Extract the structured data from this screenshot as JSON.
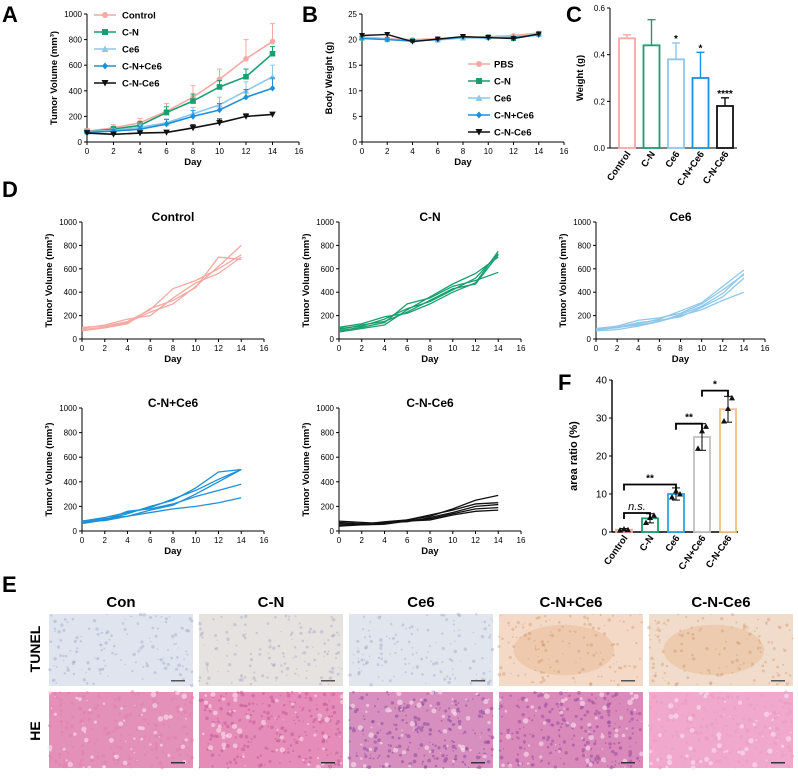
{
  "figure": {
    "panel_labels": [
      "A",
      "B",
      "C",
      "D",
      "E",
      "F"
    ],
    "colors": {
      "control": "#f4a9a3",
      "cn": "#1a9e6e",
      "ce6": "#8ec7ea",
      "cnce6": "#1e90d8",
      "cnce6b": "#111111",
      "f_cn": "#1a9e6e",
      "f_ce6": "#2ea3e6",
      "f_cnce6": "#c0c0c0",
      "f_cnce6b": "#f1c27d"
    }
  },
  "chart_data": [
    {
      "id": "A",
      "type": "line",
      "title": "",
      "xlabel": "Day",
      "ylabel": "Tumor Volume (mm³)",
      "xlim": [
        0,
        16
      ],
      "ylim": [
        0,
        1000
      ],
      "xticks": [
        0,
        2,
        4,
        6,
        8,
        10,
        12,
        14,
        16
      ],
      "yticks": [
        0,
        200,
        400,
        600,
        800,
        1000
      ],
      "x": [
        0,
        2,
        4,
        6,
        8,
        10,
        12,
        14
      ],
      "series": [
        {
          "name": "Control",
          "color": "control",
          "marker": "circle",
          "values": [
            85,
            110,
            150,
            240,
            350,
            490,
            650,
            785
          ],
          "err": [
            20,
            25,
            35,
            60,
            90,
            80,
            150,
            140
          ]
        },
        {
          "name": "C-N",
          "color": "cn",
          "marker": "square",
          "values": [
            80,
            100,
            130,
            230,
            320,
            430,
            510,
            690
          ],
          "err": [
            15,
            20,
            30,
            45,
            55,
            50,
            60,
            55
          ]
        },
        {
          "name": "Ce6",
          "color": "ce6",
          "marker": "triangle",
          "values": [
            80,
            90,
            115,
            150,
            220,
            290,
            400,
            510
          ],
          "err": [
            15,
            15,
            25,
            30,
            50,
            60,
            70,
            90
          ]
        },
        {
          "name": "C-N+Ce6",
          "color": "cnce6",
          "marker": "diamond",
          "values": [
            75,
            85,
            100,
            140,
            200,
            250,
            350,
            420
          ],
          "err": [
            15,
            15,
            20,
            35,
            45,
            50,
            60,
            80
          ]
        },
        {
          "name": "C-N-Ce6",
          "color": "cnce6b",
          "marker": "tridown",
          "values": [
            70,
            60,
            70,
            75,
            110,
            150,
            200,
            215
          ],
          "err": [
            10,
            10,
            10,
            10,
            25,
            30,
            20,
            15
          ]
        }
      ]
    },
    {
      "id": "B",
      "type": "line",
      "title": "",
      "xlabel": "Day",
      "ylabel": "Body Weight (g)",
      "xlim": [
        0,
        16
      ],
      "ylim": [
        0,
        25
      ],
      "xticks": [
        0,
        2,
        4,
        6,
        8,
        10,
        12,
        14,
        16
      ],
      "yticks": [
        0,
        5,
        10,
        15,
        20,
        25
      ],
      "x": [
        0,
        2,
        4,
        6,
        8,
        10,
        12,
        14
      ],
      "series": [
        {
          "name": "PBS",
          "color": "control",
          "marker": "circle",
          "values": [
            20.5,
            20.2,
            20.0,
            20.2,
            20.4,
            20.6,
            20.8,
            21.3
          ]
        },
        {
          "name": "C-N",
          "color": "cn",
          "marker": "square",
          "values": [
            20.3,
            20.0,
            19.8,
            20.0,
            20.4,
            20.5,
            20.2,
            21.0
          ]
        },
        {
          "name": "Ce6",
          "color": "ce6",
          "marker": "triangle",
          "values": [
            20.4,
            20.1,
            19.9,
            19.9,
            20.3,
            20.4,
            20.6,
            21.0
          ]
        },
        {
          "name": "C-N+Ce6",
          "color": "cnce6",
          "marker": "diamond",
          "values": [
            20.2,
            20.0,
            19.7,
            20.0,
            20.5,
            20.3,
            20.4,
            20.9
          ]
        },
        {
          "name": "C-N-Ce6",
          "color": "cnce6b",
          "marker": "tridown",
          "values": [
            20.8,
            21.0,
            19.6,
            20.1,
            20.6,
            20.4,
            20.2,
            21.1
          ]
        }
      ]
    },
    {
      "id": "C",
      "type": "bar",
      "title": "",
      "xlabel": "",
      "ylabel": "Weight (g)",
      "ylim": [
        0,
        0.6
      ],
      "yticks": [
        "0.0",
        "0.2",
        "0.4",
        "0.6"
      ],
      "categories": [
        "Control",
        "C-N",
        "Ce6",
        "C-N+Ce6",
        "C-N-Ce6"
      ],
      "colors": [
        "control",
        "cn",
        "ce6",
        "cnce6",
        "cnce6b"
      ],
      "values": [
        0.47,
        0.44,
        0.38,
        0.3,
        0.18
      ],
      "err": [
        0.015,
        0.11,
        0.07,
        0.11,
        0.035
      ],
      "significance": [
        "",
        "",
        "*",
        "*",
        "****"
      ]
    },
    {
      "id": "D",
      "type": "line",
      "subplots": [
        {
          "title": "Control",
          "color": "control",
          "xlabel": "Day",
          "ylabel": "Tumor Volume (mm³)",
          "xlim": [
            0,
            16
          ],
          "ylim": [
            0,
            1000
          ],
          "x": [
            0,
            2,
            4,
            6,
            8,
            10,
            12,
            14
          ],
          "lines": [
            [
              100,
              110,
              150,
              250,
              430,
              500,
              600,
              720
            ],
            [
              80,
              100,
              140,
              230,
              300,
              450,
              620,
              800
            ],
            [
              90,
              120,
              170,
              200,
              350,
              480,
              560,
              700
            ],
            [
              70,
              95,
              130,
              260,
              330,
              440,
              700,
              680
            ]
          ]
        },
        {
          "title": "C-N",
          "color": "cn",
          "xlabel": "Day",
          "ylabel": "Tumor Volume (mm³)",
          "xlim": [
            0,
            16
          ],
          "ylim": [
            0,
            1000
          ],
          "x": [
            0,
            2,
            4,
            6,
            8,
            10,
            12,
            14
          ],
          "lines": [
            [
              70,
              100,
              140,
              300,
              350,
              450,
              500,
              570
            ],
            [
              90,
              110,
              170,
              260,
              320,
              420,
              520,
              730
            ],
            [
              100,
              130,
              190,
              220,
              300,
              400,
              480,
              750
            ],
            [
              60,
              90,
              120,
              250,
              360,
              470,
              560,
              700
            ],
            [
              80,
              120,
              150,
              230,
              330,
              430,
              470,
              720
            ]
          ]
        },
        {
          "title": "Ce6",
          "color": "ce6",
          "xlabel": "Day",
          "ylabel": "Tumor Volume (mm³)",
          "xlim": [
            0,
            16
          ],
          "ylim": [
            0,
            1000
          ],
          "x": [
            0,
            2,
            4,
            6,
            8,
            10,
            12,
            14
          ],
          "lines": [
            [
              80,
              100,
              120,
              150,
              200,
              250,
              330,
              400
            ],
            [
              90,
              110,
              160,
              180,
              220,
              300,
              420,
              550
            ],
            [
              70,
              80,
              110,
              150,
              210,
              280,
              390,
              560
            ],
            [
              85,
              95,
              130,
              170,
              240,
              310,
              450,
              590
            ],
            [
              75,
              100,
              140,
              160,
              190,
              270,
              360,
              520
            ]
          ]
        },
        {
          "title": "C-N+Ce6",
          "color": "cnce6",
          "xlabel": "Day",
          "ylabel": "Tumor Volume (mm³)",
          "xlim": [
            0,
            16
          ],
          "ylim": [
            0,
            1000
          ],
          "x": [
            0,
            2,
            4,
            6,
            8,
            10,
            12,
            14
          ],
          "lines": [
            [
              80,
              100,
              120,
              150,
              180,
              200,
              230,
              270
            ],
            [
              70,
              90,
              160,
              180,
              220,
              280,
              330,
              380
            ],
            [
              80,
              110,
              150,
              190,
              260,
              330,
              420,
              500
            ],
            [
              60,
              90,
              140,
              200,
              250,
              350,
              480,
              500
            ],
            [
              75,
              85,
              120,
              170,
              210,
              300,
              400,
              500
            ]
          ]
        },
        {
          "title": "C-N-Ce6",
          "color": "cnce6b",
          "xlabel": "Day",
          "ylabel": "Tumor Volume (mm³)",
          "xlim": [
            0,
            16
          ],
          "ylim": [
            0,
            1000
          ],
          "x": [
            0,
            2,
            4,
            6,
            8,
            10,
            12,
            14
          ],
          "lines": [
            [
              70,
              60,
              70,
              75,
              110,
              150,
              200,
              215
            ],
            [
              80,
              70,
              60,
              90,
              120,
              180,
              250,
              290
            ],
            [
              50,
              50,
              55,
              80,
              90,
              130,
              160,
              170
            ],
            [
              60,
              55,
              75,
              90,
              130,
              170,
              220,
              230
            ],
            [
              40,
              50,
              60,
              85,
              100,
              140,
              180,
              190
            ]
          ]
        }
      ]
    },
    {
      "id": "F",
      "type": "bar",
      "title": "",
      "xlabel": "",
      "ylabel": "area ratio (%)",
      "ylim": [
        0,
        40
      ],
      "yticks": [
        0,
        10,
        20,
        30,
        40
      ],
      "categories": [
        "Control",
        "C-N",
        "Ce6",
        "C-N+Ce6",
        "C-N-Ce6"
      ],
      "colors": [
        "control",
        "f_cn",
        "f_ce6",
        "f_cnce6",
        "f_cnce6b"
      ],
      "values": [
        0.6,
        3.6,
        10.0,
        25.0,
        32.3
      ],
      "err": [
        0.3,
        1.2,
        1.6,
        3.5,
        3.4
      ],
      "points": [
        [
          0.5,
          0.8,
          0.6
        ],
        [
          2.5,
          3.8,
          4.4
        ],
        [
          9.2,
          10.8,
          10.0
        ],
        [
          22.0,
          26.6,
          27.8
        ],
        [
          29.2,
          32.5,
          35.3
        ]
      ],
      "comparisons": [
        {
          "label": "n.s.",
          "from": 0,
          "to": 1
        },
        {
          "label": "**",
          "from": 0,
          "to": 2
        },
        {
          "label": "**",
          "from": 2,
          "to": 3
        },
        {
          "label": "*",
          "from": 3,
          "to": 4
        }
      ]
    }
  ],
  "panel_e": {
    "column_headers": [
      "Con",
      "C-N",
      "Ce6",
      "C-N+Ce6",
      "C-N-Ce6"
    ],
    "row_labels": [
      "TUNEL",
      "HE"
    ],
    "tunel_tint": [
      "#dfe4ef",
      "#e6e2df",
      "#e1e5ee",
      "#f3d9c6",
      "#f1dccb"
    ],
    "he_tint": [
      "#e391b8",
      "#e68cb8",
      "#d68fbf",
      "#d98abb",
      "#f0a9cc"
    ],
    "he_spots": [
      "#e07fb0",
      "#c25a98",
      "#8c4a9c",
      "#9b4d9e",
      "#e99bc3"
    ]
  }
}
